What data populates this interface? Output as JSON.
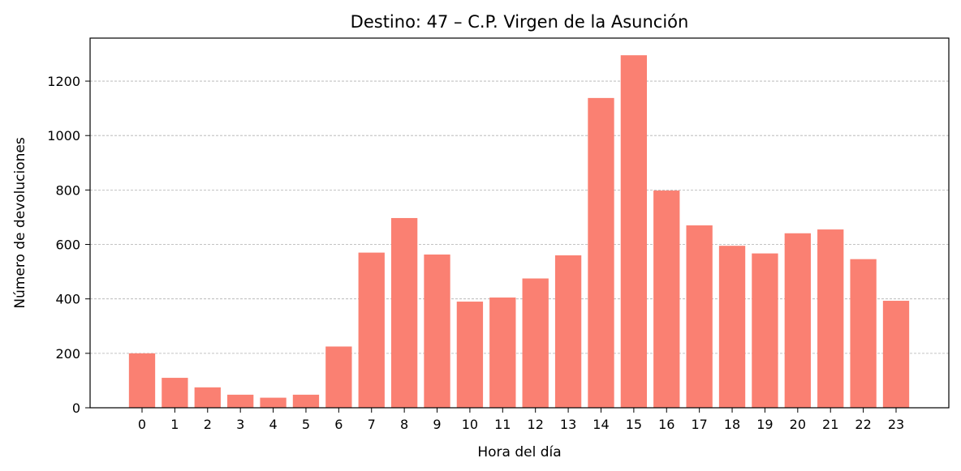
{
  "chart_data": {
    "type": "bar",
    "title": "Destino: 47 – C.P. Virgen de la Asunción",
    "xlabel": "Hora del día",
    "ylabel": "Número de devoluciones",
    "categories": [
      "0",
      "1",
      "2",
      "3",
      "4",
      "5",
      "6",
      "7",
      "8",
      "9",
      "10",
      "11",
      "12",
      "13",
      "14",
      "15",
      "16",
      "17",
      "18",
      "19",
      "20",
      "21",
      "22",
      "23"
    ],
    "values": [
      200,
      110,
      75,
      48,
      37,
      48,
      225,
      570,
      697,
      563,
      390,
      405,
      475,
      560,
      1138,
      1295,
      798,
      670,
      595,
      567,
      641,
      655,
      546,
      393
    ],
    "ylim": [
      0,
      1358
    ],
    "yticks": [
      0,
      200,
      400,
      600,
      800,
      1000,
      1200
    ],
    "grid": "y dashed",
    "bar_color": "#fa8072"
  }
}
